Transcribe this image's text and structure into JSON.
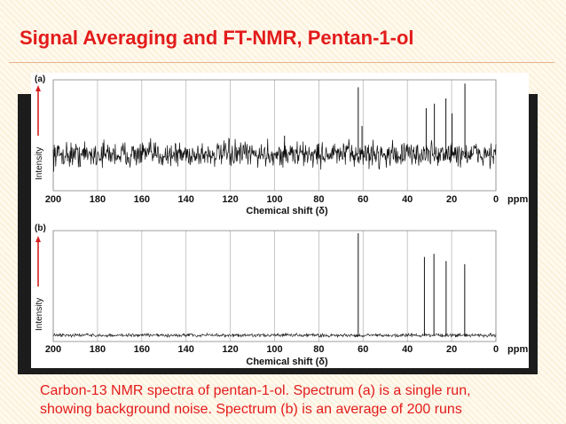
{
  "slide": {
    "title": "Signal Averaging and FT-NMR, Pentan-1-ol",
    "caption_line1": "Carbon-13 NMR spectra of pentan-1-ol. Spectrum (a) is a single run,",
    "caption_line2": "showing background noise. Spectrum (b) is an average of 200 runs",
    "title_color": "#e31b1b",
    "caption_color": "#e31b1b"
  },
  "chart_data": [
    {
      "type": "line",
      "panel_label": "(a)",
      "ylabel": "Intensity",
      "xlabel": "Chemical shift (δ)",
      "x_unit": "ppm",
      "xlim": [
        200,
        0
      ],
      "x_reversed": true,
      "x_ticks": [
        "200",
        "180",
        "160",
        "140",
        "120",
        "100",
        "80",
        "60",
        "40",
        "20",
        "0"
      ],
      "grid": true,
      "noise_level": 0.35,
      "peaks": [
        {
          "x": 95.5,
          "y": 0.25
        },
        {
          "x": 62.2,
          "y": 0.9
        },
        {
          "x": 60.5,
          "y": 0.38
        },
        {
          "x": 31.5,
          "y": 0.62
        },
        {
          "x": 27.8,
          "y": 0.68
        },
        {
          "x": 22.6,
          "y": 0.75
        },
        {
          "x": 19.8,
          "y": 0.55
        },
        {
          "x": 14.0,
          "y": 0.95
        }
      ]
    },
    {
      "type": "line",
      "panel_label": "(b)",
      "ylabel": "Intensity",
      "xlabel": "Chemical shift (δ)",
      "x_unit": "ppm",
      "xlim": [
        200,
        0
      ],
      "x_reversed": true,
      "x_ticks": [
        "200",
        "180",
        "160",
        "140",
        "120",
        "100",
        "80",
        "60",
        "40",
        "20",
        "0"
      ],
      "grid": true,
      "noise_level": 0.04,
      "peaks": [
        {
          "x": 62.2,
          "y": 1.0
        },
        {
          "x": 32.3,
          "y": 0.77
        },
        {
          "x": 28.0,
          "y": 0.8
        },
        {
          "x": 22.5,
          "y": 0.73
        },
        {
          "x": 14.1,
          "y": 0.7
        }
      ]
    }
  ]
}
